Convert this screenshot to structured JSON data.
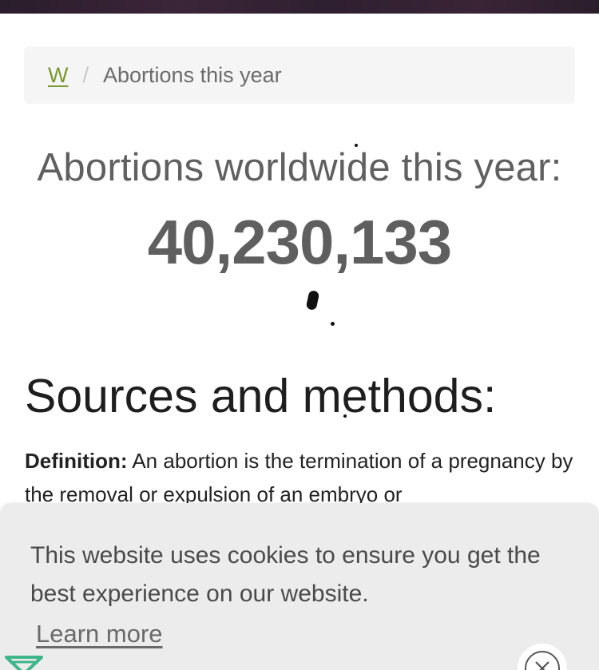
{
  "breadcrumb": {
    "home_link": "W",
    "separator": "/",
    "current": "Abortions this year"
  },
  "counter": {
    "title": "Abortions worldwide this year:",
    "value": "40,230,133"
  },
  "sources": {
    "heading": "Sources and methods:",
    "definition_label": "Definition:",
    "definition_text": "An abortion is the termination of a pregnancy by the removal or expulsion of an embryo or"
  },
  "cookie_banner": {
    "message": "This website uses cookies to ensure you get the best experience on our website.",
    "learn_more": "Learn more"
  },
  "icons": {
    "close": "close-icon",
    "logo": "logo-icon"
  },
  "colors": {
    "link_green": "#7a9a2e",
    "counter_gray": "#5f5f5f",
    "cookie_bg": "#ececec",
    "logo_green": "#3fb58a"
  }
}
